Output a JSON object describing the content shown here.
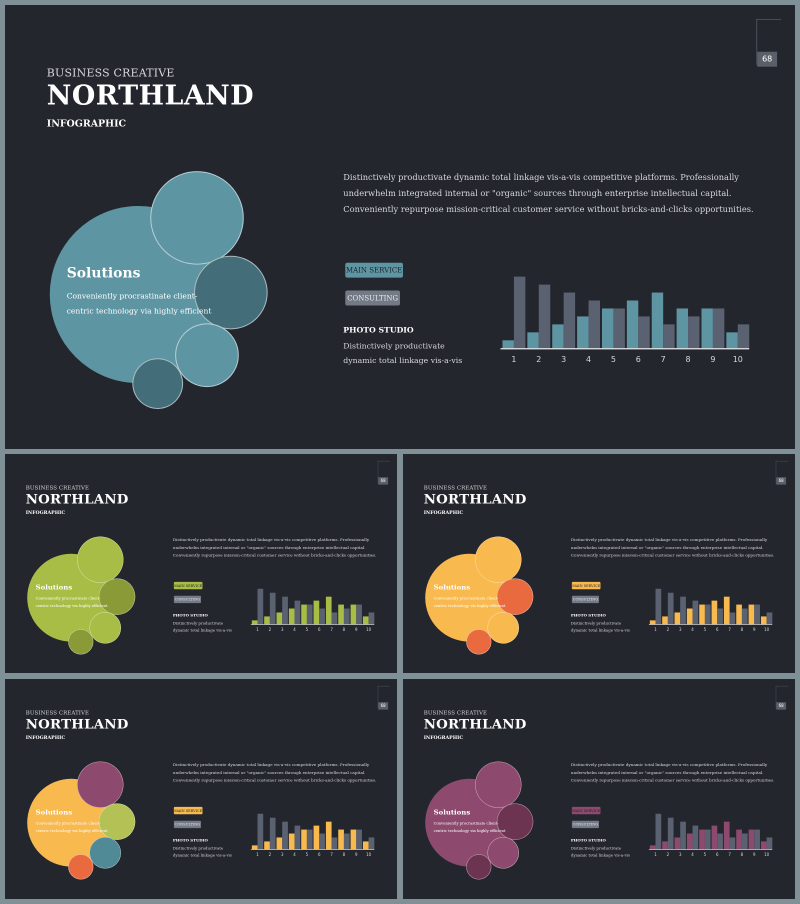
{
  "kicker": "BUSINESS CREATIVE",
  "brand": "NORTHLAND",
  "subtitle": "INFOGRAPHIC",
  "page_number": "68",
  "description": "Distinctively productivate dynamic total linkage vis-a-vis competitive platforms. Professionally underwhelm integrated internal or \"organic\" sources through enterprise intellectual capital. Conveniently repurpose mission-critical customer service without bricks-and-clicks opportunities.",
  "solutions": {
    "title": "Solutions",
    "text": "Conveniently procrastinate client-centric technology via highly efficient"
  },
  "tags": {
    "main_service": "MAIN SERVICE",
    "consulting": "CONSULTING"
  },
  "photo_studio": {
    "title": "PHOTO STUDIO",
    "text": "Distinctively productivate dynamic total linkage vis-a-vis"
  },
  "chart_data": {
    "type": "bar",
    "categories": [
      "1",
      "2",
      "3",
      "4",
      "5",
      "6",
      "7",
      "8",
      "9",
      "10"
    ],
    "series": [
      {
        "values": [
          10,
          20,
          30,
          40,
          50,
          60,
          70,
          50,
          50,
          20
        ]
      },
      {
        "values": [
          90,
          80,
          70,
          60,
          50,
          40,
          30,
          40,
          50,
          30
        ]
      }
    ],
    "ylim": [
      0,
      100
    ],
    "grid": false,
    "legend": "none"
  },
  "colors": {
    "background": "#24262d",
    "secondary_bar": "#5a6272",
    "consulting_tag": "#737985"
  },
  "themes": [
    {
      "name": "blue",
      "accent": "#5e95a3",
      "big": "#5e95a3",
      "c1": "#5e95a3",
      "c2": "#436d78",
      "c3": "#5e95a3",
      "c4": "#436d78"
    },
    {
      "name": "green",
      "accent": "#a8bd46",
      "big": "#a8bd46",
      "c1": "#a8bd46",
      "c2": "#8a9a36",
      "c3": "#a8bd46",
      "c4": "#8a9a36"
    },
    {
      "name": "orange",
      "accent": "#f8b94f",
      "big": "#f8b94f",
      "c1": "#f8b94f",
      "c2": "#ea6a40",
      "c3": "#f8b94f",
      "c4": "#ea6a40"
    },
    {
      "name": "mixed",
      "accent": "#f8b94f",
      "big": "#f8b94f",
      "c1": "#8e4a6e",
      "c2": "#b4c154",
      "c3": "#4f8a96",
      "c4": "#ea6a40"
    },
    {
      "name": "plum",
      "accent": "#8e4a6e",
      "big": "#8e4a6e",
      "c1": "#8e4a6e",
      "c2": "#6d3452",
      "c3": "#8e4a6e",
      "c4": "#6d3452"
    }
  ]
}
